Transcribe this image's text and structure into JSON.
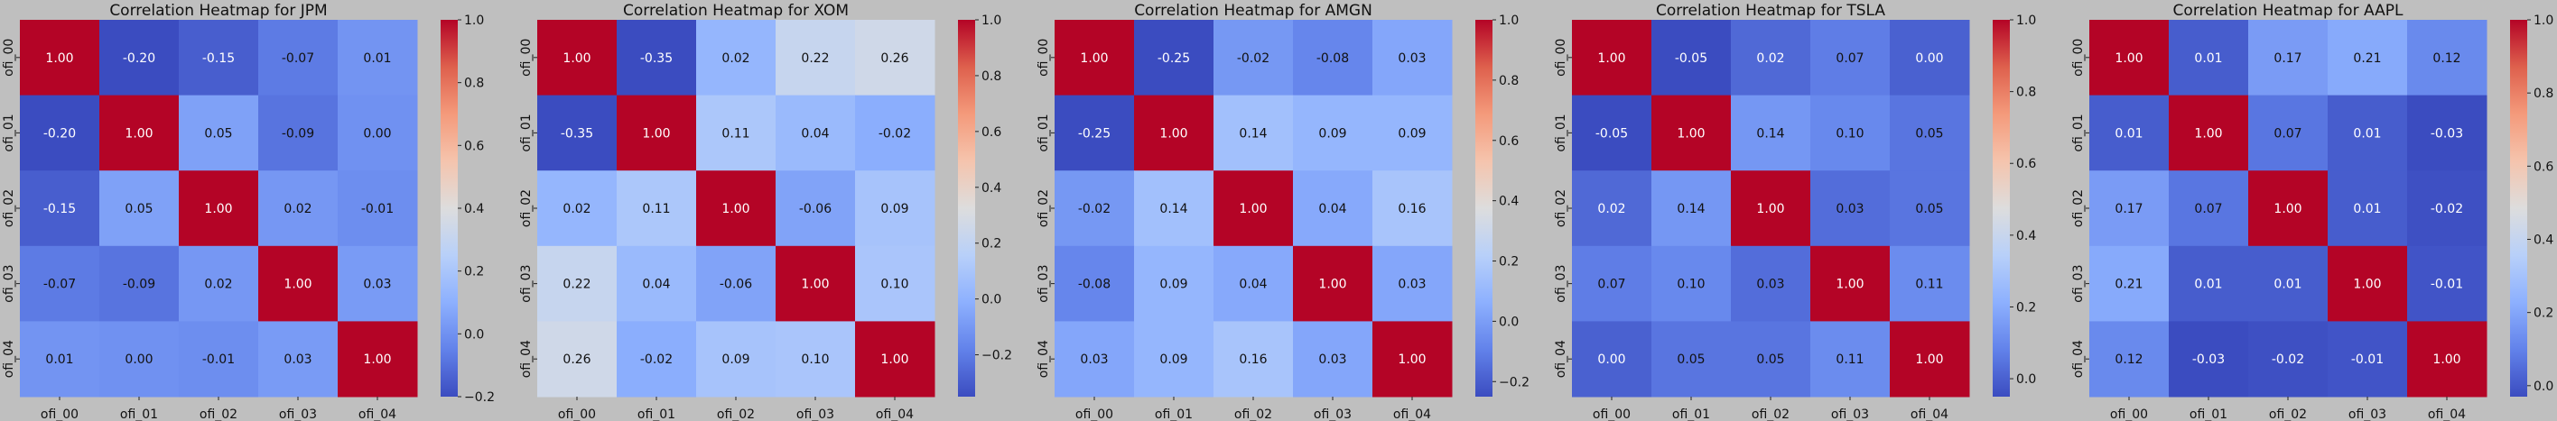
{
  "figure": {
    "background": "#bfbfbf"
  },
  "chart_data": [
    {
      "type": "heatmap",
      "title": "Correlation Heatmap for JPM",
      "x": [
        "ofi_00",
        "ofi_01",
        "ofi_02",
        "ofi_03",
        "ofi_04"
      ],
      "y": [
        "ofi_00",
        "ofi_01",
        "ofi_02",
        "ofi_03",
        "ofi_04"
      ],
      "values": [
        [
          1.0,
          -0.2,
          -0.15,
          -0.07,
          0.01
        ],
        [
          -0.2,
          1.0,
          0.05,
          -0.09,
          0.0
        ],
        [
          -0.15,
          0.05,
          1.0,
          0.02,
          -0.01
        ],
        [
          -0.07,
          -0.09,
          0.02,
          1.0,
          0.03
        ],
        [
          0.01,
          0.0,
          -0.01,
          0.03,
          1.0
        ]
      ],
      "colorbar": {
        "vmin": -0.2,
        "vmax": 1.0,
        "ticks": [
          -0.2,
          0.0,
          0.2,
          0.4,
          0.6,
          0.8,
          1.0
        ],
        "tick_labels": [
          "−0.2",
          "0.0",
          "0.2",
          "0.4",
          "0.6",
          "0.8",
          "1.0"
        ]
      },
      "colormap": "coolwarm",
      "annotations": true
    },
    {
      "type": "heatmap",
      "title": "Correlation Heatmap for XOM",
      "x": [
        "ofi_00",
        "ofi_01",
        "ofi_02",
        "ofi_03",
        "ofi_04"
      ],
      "y": [
        "ofi_00",
        "ofi_01",
        "ofi_02",
        "ofi_03",
        "ofi_04"
      ],
      "values": [
        [
          1.0,
          -0.35,
          0.02,
          0.22,
          0.26
        ],
        [
          -0.35,
          1.0,
          0.11,
          0.04,
          -0.02
        ],
        [
          0.02,
          0.11,
          1.0,
          -0.06,
          0.09
        ],
        [
          0.22,
          0.04,
          -0.06,
          1.0,
          0.1
        ],
        [
          0.26,
          -0.02,
          0.09,
          0.1,
          1.0
        ]
      ],
      "colorbar": {
        "vmin": -0.35,
        "vmax": 1.0,
        "ticks": [
          -0.2,
          0.0,
          0.2,
          0.4,
          0.6,
          0.8,
          1.0
        ],
        "tick_labels": [
          "−0.2",
          "0.0",
          "0.2",
          "0.4",
          "0.6",
          "0.8",
          "1.0"
        ]
      },
      "colormap": "coolwarm",
      "annotations": true
    },
    {
      "type": "heatmap",
      "title": "Correlation Heatmap for AMGN",
      "x": [
        "ofi_00",
        "ofi_01",
        "ofi_02",
        "ofi_03",
        "ofi_04"
      ],
      "y": [
        "ofi_00",
        "ofi_01",
        "ofi_02",
        "ofi_03",
        "ofi_04"
      ],
      "values": [
        [
          1.0,
          -0.25,
          -0.02,
          -0.08,
          0.03
        ],
        [
          -0.25,
          1.0,
          0.14,
          0.09,
          0.09
        ],
        [
          -0.02,
          0.14,
          1.0,
          0.04,
          0.16
        ],
        [
          -0.08,
          0.09,
          0.04,
          1.0,
          0.03
        ],
        [
          0.03,
          0.09,
          0.16,
          0.03,
          1.0
        ]
      ],
      "colorbar": {
        "vmin": -0.25,
        "vmax": 1.0,
        "ticks": [
          -0.2,
          0.0,
          0.2,
          0.4,
          0.6,
          0.8,
          1.0
        ],
        "tick_labels": [
          "−0.2",
          "0.0",
          "0.2",
          "0.4",
          "0.6",
          "0.8",
          "1.0"
        ]
      },
      "colormap": "coolwarm",
      "annotations": true
    },
    {
      "type": "heatmap",
      "title": "Correlation Heatmap for TSLA",
      "x": [
        "ofi_00",
        "ofi_01",
        "ofi_02",
        "ofi_03",
        "ofi_04"
      ],
      "y": [
        "ofi_00",
        "ofi_01",
        "ofi_02",
        "ofi_03",
        "ofi_04"
      ],
      "values": [
        [
          1.0,
          -0.05,
          0.02,
          0.07,
          0.0
        ],
        [
          -0.05,
          1.0,
          0.14,
          0.1,
          0.05
        ],
        [
          0.02,
          0.14,
          1.0,
          0.03,
          0.05
        ],
        [
          0.07,
          0.1,
          0.03,
          1.0,
          0.11
        ],
        [
          0.0,
          0.05,
          0.05,
          0.11,
          1.0
        ]
      ],
      "colorbar": {
        "vmin": -0.05,
        "vmax": 1.0,
        "ticks": [
          0.0,
          0.2,
          0.4,
          0.6,
          0.8,
          1.0
        ],
        "tick_labels": [
          "0.0",
          "0.2",
          "0.4",
          "0.6",
          "0.8",
          "1.0"
        ]
      },
      "colormap": "coolwarm",
      "annotations": true
    },
    {
      "type": "heatmap",
      "title": "Correlation Heatmap for AAPL",
      "x": [
        "ofi_00",
        "ofi_01",
        "ofi_02",
        "ofi_03",
        "ofi_04"
      ],
      "y": [
        "ofi_00",
        "ofi_01",
        "ofi_02",
        "ofi_03",
        "ofi_04"
      ],
      "values": [
        [
          1.0,
          0.01,
          0.17,
          0.21,
          0.12
        ],
        [
          0.01,
          1.0,
          0.07,
          0.01,
          -0.03
        ],
        [
          0.17,
          0.07,
          1.0,
          0.01,
          -0.02
        ],
        [
          0.21,
          0.01,
          0.01,
          1.0,
          -0.01
        ],
        [
          0.12,
          -0.03,
          -0.02,
          -0.01,
          1.0
        ]
      ],
      "colorbar": {
        "vmin": -0.03,
        "vmax": 1.0,
        "ticks": [
          0.0,
          0.2,
          0.4,
          0.6,
          0.8,
          1.0
        ],
        "tick_labels": [
          "0.0",
          "0.2",
          "0.4",
          "0.6",
          "0.8",
          "1.0"
        ]
      },
      "colormap": "coolwarm",
      "annotations": true
    }
  ]
}
